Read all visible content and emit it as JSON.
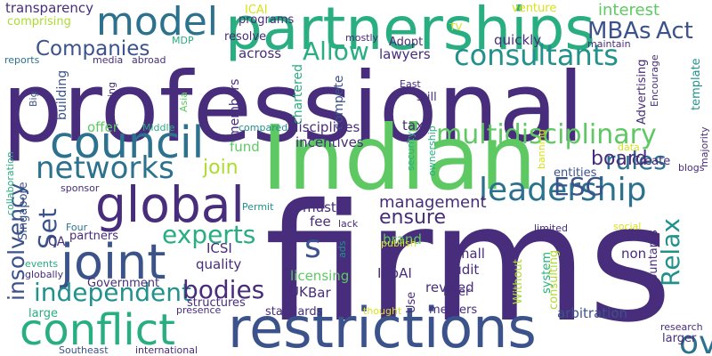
{
  "palette": {
    "purple": "#472d7b",
    "indigo": "#3b528b",
    "blue": "#2c728e",
    "teal": "#21918c",
    "green": "#28ae80",
    "lightgreen": "#5ec962",
    "lime": "#addc30",
    "yellow": "#d8e219"
  },
  "words": [
    {
      "text": "professional",
      "color": "#472d7b"
    },
    {
      "text": "firms",
      "color": "#472d7b"
    },
    {
      "text": "Indian",
      "color": "#5ec962"
    },
    {
      "text": "partnerships",
      "color": "#28ae80"
    },
    {
      "text": "restrictions",
      "color": "#3b528b"
    },
    {
      "text": "council",
      "color": "#2c728e"
    },
    {
      "text": "model",
      "color": "#2c728e"
    },
    {
      "text": "global",
      "color": "#472d7b"
    },
    {
      "text": "joint",
      "color": "#3b528b"
    },
    {
      "text": "conflict",
      "color": "#28ae80"
    },
    {
      "text": "networks",
      "color": "#2c728e"
    },
    {
      "text": "leadership",
      "color": "#2c728e"
    },
    {
      "text": "multidisciplinary",
      "color": "#5ec962"
    },
    {
      "text": "oversight",
      "color": "#2c728e"
    },
    {
      "text": "consultants",
      "color": "#21918c"
    },
    {
      "text": "independent",
      "color": "#21918c"
    },
    {
      "text": "experts",
      "color": "#28ae80"
    },
    {
      "text": "bodies",
      "color": "#472d7b"
    },
    {
      "text": "rules",
      "color": "#2c728e"
    },
    {
      "text": "Companies",
      "color": "#3b528b"
    },
    {
      "text": "insolvency",
      "color": "#3b528b"
    },
    {
      "text": "Relax",
      "color": "#21918c"
    },
    {
      "text": "board",
      "color": "#472d7b"
    },
    {
      "text": "ensure",
      "color": "#472d7b"
    },
    {
      "text": "join",
      "color": "#addc30"
    },
    {
      "text": "ESG",
      "color": "#3b528b"
    },
    {
      "text": "Allow",
      "color": "#28ae80"
    },
    {
      "text": "MBAs",
      "color": "#3b528b"
    },
    {
      "text": "Act",
      "color": "#3b528b"
    },
    {
      "text": "interest",
      "color": "#5ec962"
    },
    {
      "text": "Set",
      "color": "#3b528b"
    },
    {
      "text": "s",
      "color": "#3b528b"
    },
    {
      "text": "management",
      "color": "#472d7b"
    },
    {
      "text": "transparency",
      "color": "#472d7b"
    },
    {
      "text": "comprising",
      "color": "#addc30"
    },
    {
      "text": "ICAI",
      "color": "#d8e219"
    },
    {
      "text": "programs",
      "color": "#472d7b"
    },
    {
      "text": "venture",
      "color": "#d8e219"
    },
    {
      "text": "mostly",
      "color": "#472d7b"
    },
    {
      "text": "resolve",
      "color": "#472d7b"
    },
    {
      "text": "Adopt",
      "color": "#472d7b"
    },
    {
      "text": "quickly",
      "color": "#472d7b"
    },
    {
      "text": "maintain",
      "color": "#472d7b"
    },
    {
      "text": "reports",
      "color": "#2c728e"
    },
    {
      "text": "media",
      "color": "#472d7b"
    },
    {
      "text": "abroad",
      "color": "#472d7b"
    },
    {
      "text": "across",
      "color": "#472d7b"
    },
    {
      "text": "lawyers",
      "color": "#472d7b"
    },
    {
      "text": "MDP",
      "color": "#28ae80"
    },
    {
      "text": "TV",
      "color": "#d8e219"
    },
    {
      "text": "Big",
      "color": "#3b528b"
    },
    {
      "text": "building",
      "color": "#3b528b"
    },
    {
      "text": "ensuring",
      "color": "#472d7b"
    },
    {
      "text": "offer",
      "color": "#5ec962"
    },
    {
      "text": "Middle",
      "color": "#28ae80"
    },
    {
      "text": "Asia",
      "color": "#5ec962"
    },
    {
      "text": "members",
      "color": "#472d7b"
    },
    {
      "text": "chartered",
      "color": "#28ae80"
    },
    {
      "text": "compete",
      "color": "#3b528b"
    },
    {
      "text": "East",
      "color": "#472d7b"
    },
    {
      "text": "still",
      "color": "#472d7b"
    },
    {
      "text": "Advertising",
      "color": "#472d7b"
    },
    {
      "text": "Encourage",
      "color": "#472d7b"
    },
    {
      "text": "template",
      "color": "#21918c"
    },
    {
      "text": "compared",
      "color": "#21918c"
    },
    {
      "text": "disciplines",
      "color": "#472d7b"
    },
    {
      "text": "tax",
      "color": "#472d7b"
    },
    {
      "text": "fund",
      "color": "#5ec962"
    },
    {
      "text": "incentives",
      "color": "#472d7b"
    },
    {
      "text": "Create",
      "color": "#472d7b"
    },
    {
      "text": "data",
      "color": "#d8e219"
    },
    {
      "text": "entities",
      "color": "#3b528b"
    },
    {
      "text": "blogs",
      "color": "#472d7b"
    },
    {
      "text": "majority",
      "color": "#472d7b"
    },
    {
      "text": "collaboration",
      "color": "#28ae80"
    },
    {
      "text": "Singapore",
      "color": "#3b528b"
    },
    {
      "text": "sponsor",
      "color": "#472d7b"
    },
    {
      "text": "security",
      "color": "#28ae80"
    },
    {
      "text": "ownership",
      "color": "#28ae80"
    },
    {
      "text": "banning",
      "color": "#d8e219"
    },
    {
      "text": "Four",
      "color": "#2c728e"
    },
    {
      "text": "Permit",
      "color": "#21918c"
    },
    {
      "text": "must",
      "color": "#472d7b"
    },
    {
      "text": "fee",
      "color": "#472d7b"
    },
    {
      "text": "lack",
      "color": "#472d7b"
    },
    {
      "text": "limited",
      "color": "#472d7b"
    },
    {
      "text": "social",
      "color": "#d8e219"
    },
    {
      "text": "CA",
      "color": "#472d7b"
    },
    {
      "text": "partners",
      "color": "#472d7b"
    },
    {
      "text": "ICSI",
      "color": "#472d7b"
    },
    {
      "text": "brand",
      "color": "#5ec962"
    },
    {
      "text": "publish",
      "color": "#d8e219"
    },
    {
      "text": "non",
      "color": "#472d7b"
    },
    {
      "text": "accountants",
      "color": "#472d7b"
    },
    {
      "text": "events",
      "color": "#28ae80"
    },
    {
      "text": "quality",
      "color": "#472d7b"
    },
    {
      "text": "ads",
      "color": "#21918c"
    },
    {
      "text": "small",
      "color": "#472d7b"
    },
    {
      "text": "globally",
      "color": "#472d7b"
    },
    {
      "text": "licensing",
      "color": "#5ec962"
    },
    {
      "text": "ICoAI",
      "color": "#472d7b"
    },
    {
      "text": "audit",
      "color": "#472d7b"
    },
    {
      "text": "system",
      "color": "#28ae80"
    },
    {
      "text": "consulting",
      "color": "#addc30"
    },
    {
      "text": "Government",
      "color": "#472d7b"
    },
    {
      "text": "revised",
      "color": "#472d7b"
    },
    {
      "text": "Without",
      "color": "#addc30"
    },
    {
      "text": "large",
      "color": "#28ae80"
    },
    {
      "text": "UK",
      "color": "#472d7b"
    },
    {
      "text": "Bar",
      "color": "#472d7b"
    },
    {
      "text": "inter",
      "color": "#472d7b"
    },
    {
      "text": "Use",
      "color": "#472d7b"
    },
    {
      "text": "arbitration",
      "color": "#3b528b"
    },
    {
      "text": "structures",
      "color": "#472d7b"
    },
    {
      "text": "presence",
      "color": "#472d7b"
    },
    {
      "text": "standards",
      "color": "#472d7b"
    },
    {
      "text": "mergers",
      "color": "#472d7b"
    },
    {
      "text": "thought",
      "color": "#d8e219"
    },
    {
      "text": "research",
      "color": "#472d7b"
    },
    {
      "text": "larger",
      "color": "#472d7b"
    },
    {
      "text": "Southeast",
      "color": "#3b528b"
    },
    {
      "text": "international",
      "color": "#472d7b"
    }
  ]
}
